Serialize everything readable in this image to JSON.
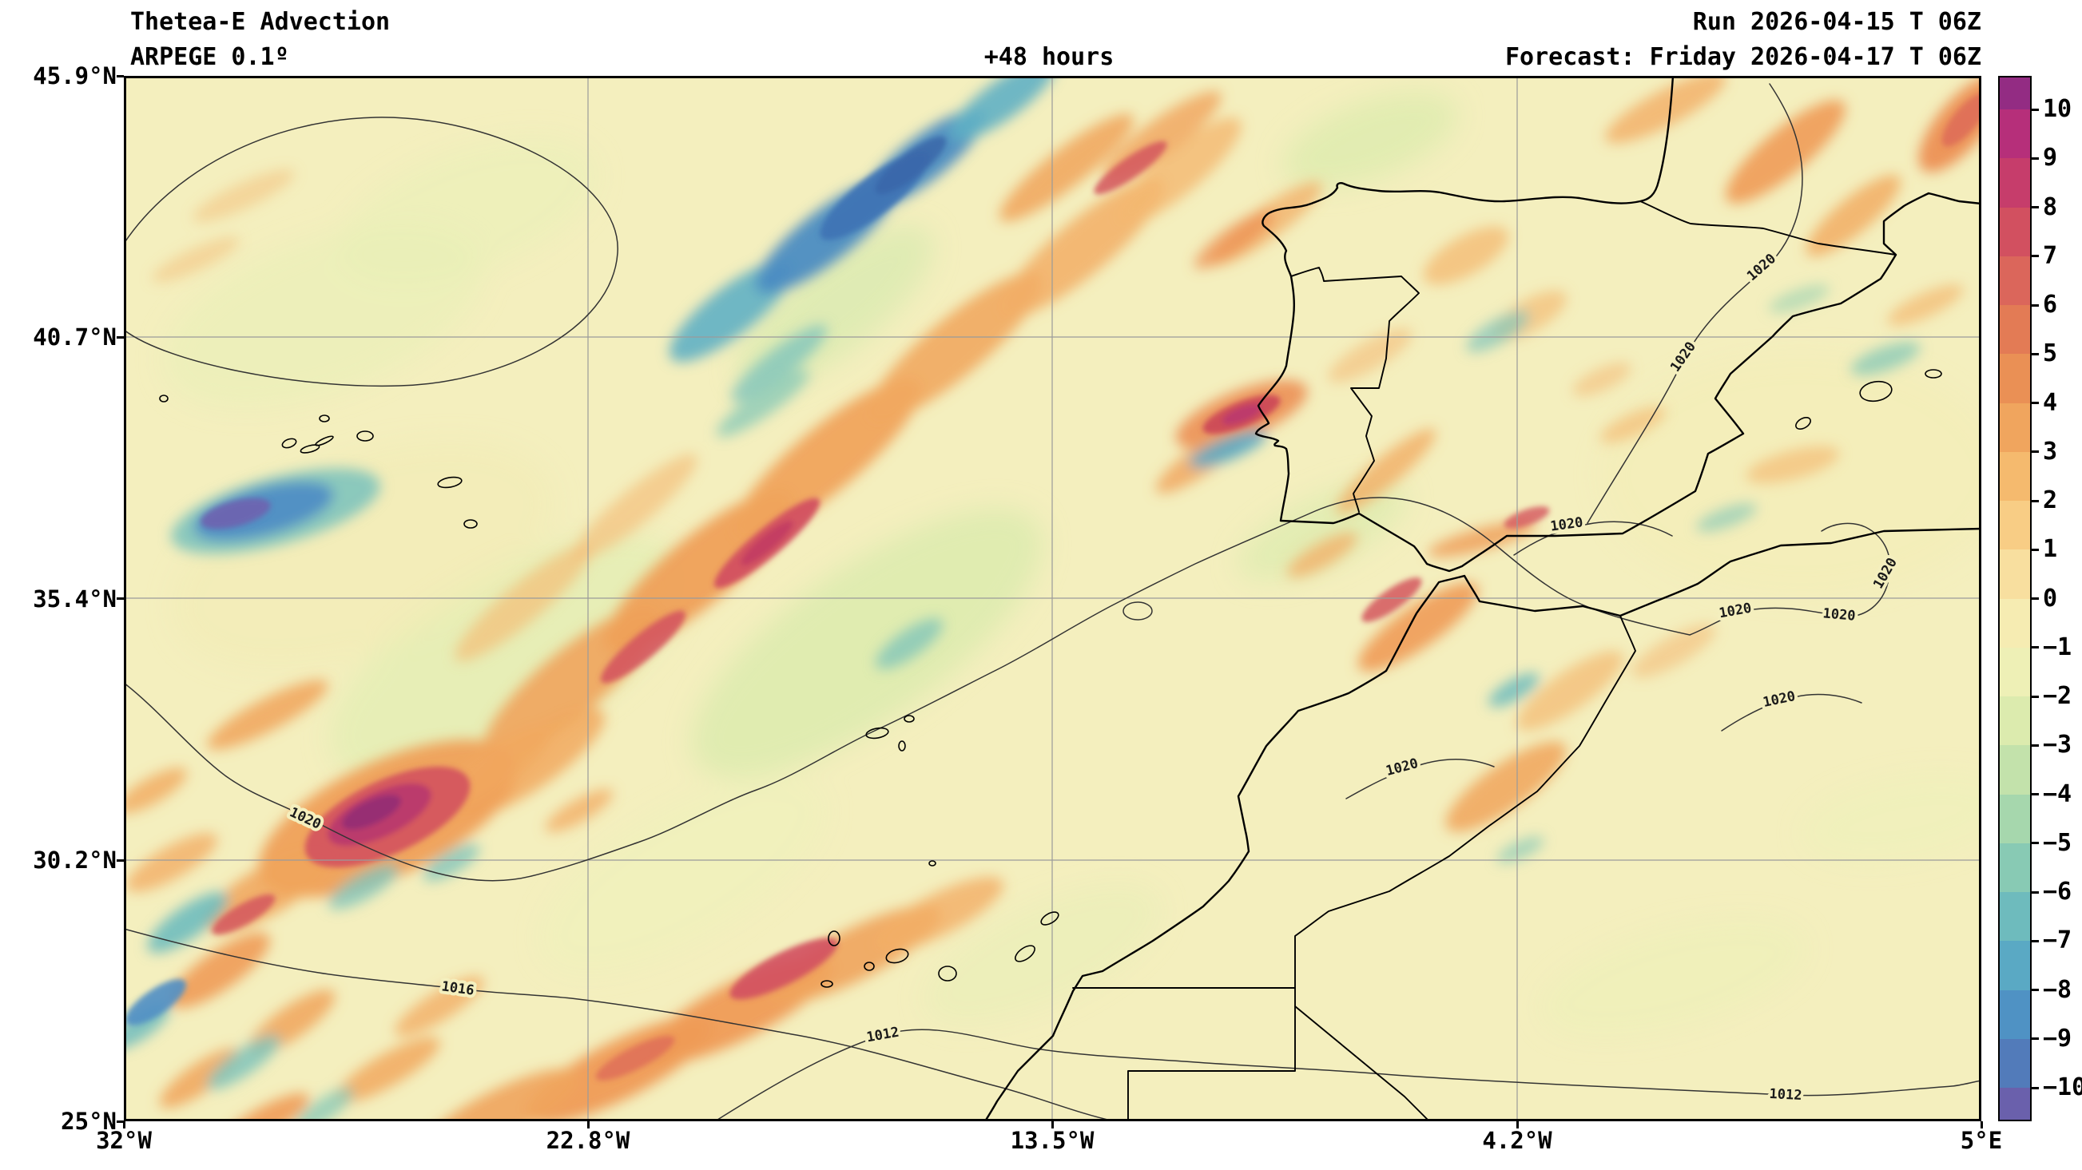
{
  "header": {
    "product": "Thetea-E Advection",
    "model": "ARPEGE 0.1º",
    "lead_time": "+48 hours",
    "run": "Run 2026-04-15 T 06Z",
    "valid": "Forecast: Friday 2026-04-17 T 06Z"
  },
  "axes": {
    "y_ticks": [
      "45.9°N",
      "40.7°N",
      "35.4°N",
      "30.2°N",
      "25°N"
    ],
    "x_ticks": [
      "32°W",
      "22.8°W",
      "13.5°W",
      "4.2°W",
      "5°E"
    ]
  },
  "colorbar": {
    "tick_labels": [
      "10",
      "9",
      "8",
      "7",
      "6",
      "5",
      "4",
      "3",
      "2",
      "1",
      "0",
      "−1",
      "−2",
      "−3",
      "−4",
      "−5",
      "−6",
      "−7",
      "−8",
      "−9",
      "−10"
    ],
    "segment_colors": [
      "#932c83",
      "#b62f7a",
      "#c63d6b",
      "#d25060",
      "#db665b",
      "#e37b55",
      "#ea9055",
      "#f0a55e",
      "#f5ba6e",
      "#f8cd85",
      "#f8df9f",
      "#f6ecb2",
      "#eef0b6",
      "#dcebae",
      "#c3e2ab",
      "#a6d7ad",
      "#88cab4",
      "#6ebbbd",
      "#5aa9c4",
      "#4f92c4",
      "#527bba",
      "#6a60ac"
    ]
  },
  "isobars": {
    "labels": [
      "1020",
      "1016",
      "1012",
      "1012",
      "1020",
      "1020",
      "1020",
      "1020",
      "1020",
      "1020",
      "1020",
      "1020"
    ]
  },
  "map": {
    "background": "#f4efbe"
  },
  "chart_data": {
    "type": "heatmap",
    "field": "Thetea-E Advection",
    "model": "ARPEGE 0.1º",
    "lead_hours": 48,
    "run": "2026-04-15 06Z",
    "valid": "Friday 2026-04-17 06Z",
    "lon_range": [
      "32°W",
      "5°E"
    ],
    "lat_range": [
      "25°N",
      "45.9°N"
    ],
    "color_scale_range": [
      -10,
      10
    ],
    "isobar_values_visible": [
      1012,
      1016,
      1020
    ]
  }
}
